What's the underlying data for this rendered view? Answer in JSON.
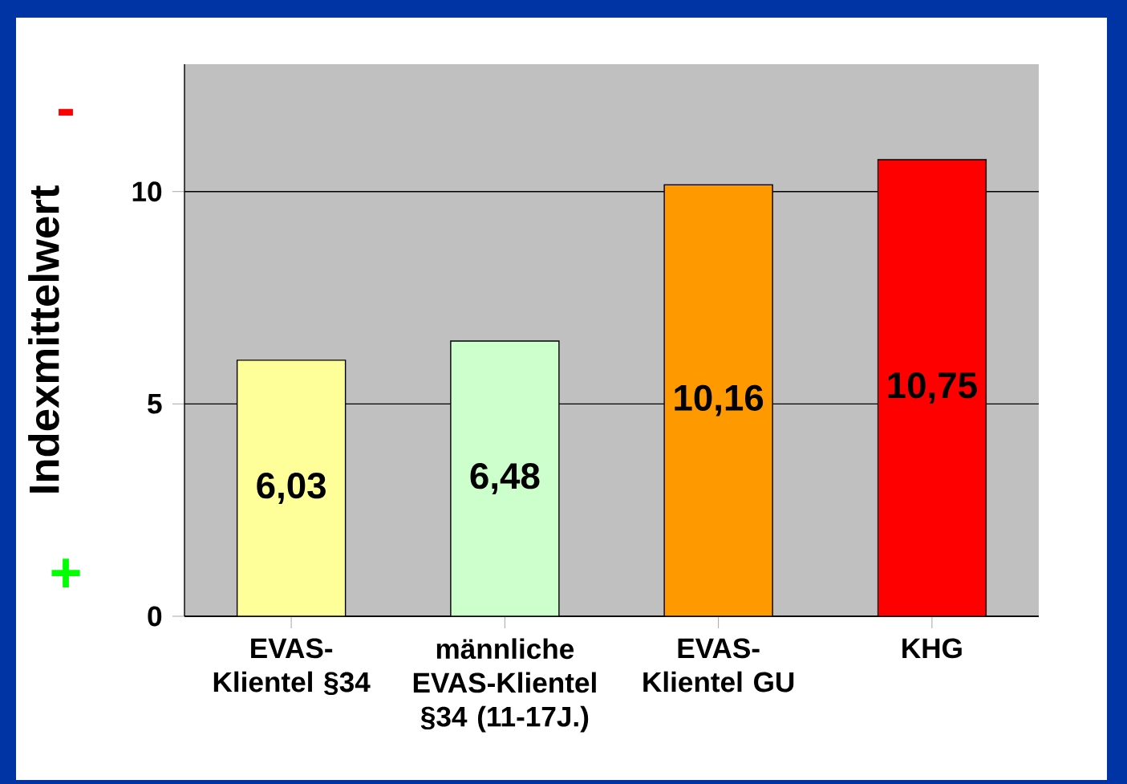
{
  "chart_data": {
    "type": "bar",
    "ylabel": "Indexmittelwert",
    "categories": [
      "EVAS-Klientel §34",
      "männliche EVAS-Klientel §34 (11-17J.)",
      "EVAS-Klientel GU",
      "KHG"
    ],
    "values": [
      6.03,
      6.48,
      10.16,
      10.75
    ],
    "colors": [
      "#ffff99",
      "#ccffcc",
      "#ff9900",
      "#ff0000"
    ],
    "value_labels": [
      "6,03",
      "6,48",
      "10,16",
      "10,75"
    ],
    "ylim": [
      0,
      13
    ],
    "yticks": [
      0,
      5,
      10
    ],
    "grid": "y",
    "annotations": [
      "-",
      "+"
    ]
  }
}
